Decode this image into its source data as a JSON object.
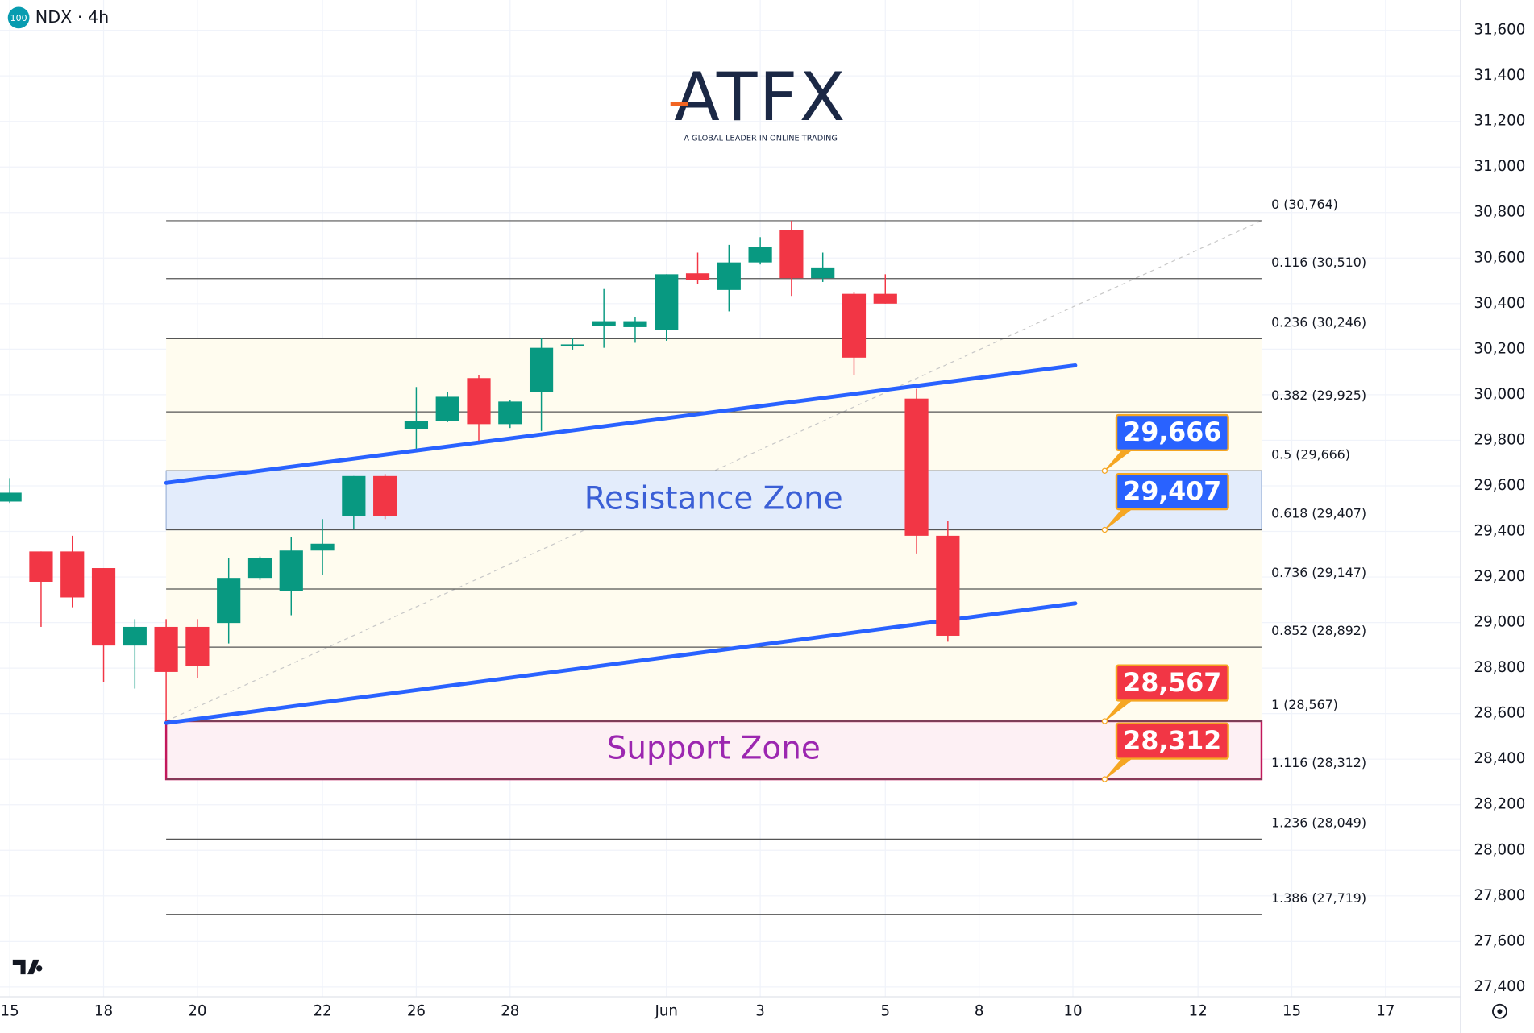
{
  "header": {
    "symbol_badge": "100",
    "title": "NDX · 4h"
  },
  "logo": {
    "name": "ATFX",
    "tagline": "A GLOBAL LEADER IN ONLINE TRADING"
  },
  "chart_data": {
    "type": "candlestick",
    "grid": true,
    "up_color": "#089981",
    "down_color": "#f23645",
    "categories": [
      "15",
      null,
      null,
      "18",
      null,
      null,
      "20",
      null,
      null,
      null,
      "22",
      null,
      null,
      "26",
      null,
      null,
      "28",
      null,
      null,
      null,
      null,
      "Jun",
      null,
      null,
      "3",
      null,
      null,
      null,
      "5",
      null,
      null,
      "8",
      null,
      null,
      "10",
      null,
      null,
      null,
      "12",
      null,
      null,
      "15",
      null,
      null,
      "17",
      null
    ],
    "open": [
      29531,
      29312,
      29312,
      29239,
      28899,
      28981,
      28981,
      28998,
      29196,
      29140,
      29316,
      29467,
      29643,
      29850,
      29884,
      30073,
      29871,
      30013,
      30215,
      30301,
      30297,
      30284,
      30533,
      30460,
      30581,
      30723,
      30512,
      30443,
      30443,
      29983,
      29381,
      null,
      null,
      null,
      null,
      null,
      null,
      null,
      null,
      null,
      null,
      null,
      null,
      null,
      null,
      null
    ],
    "high": [
      29634,
      29312,
      29381,
      29239,
      29015,
      29015,
      29015,
      29282,
      29290,
      29376,
      29454,
      29643,
      29652,
      30034,
      30013,
      30086,
      29975,
      30250,
      30250,
      30464,
      30340,
      30529,
      30624,
      30658,
      30692,
      30764,
      30624,
      30452,
      30529,
      30026,
      29445,
      null,
      null,
      null,
      null,
      null,
      null,
      null,
      null,
      null,
      null,
      null,
      null,
      null,
      null,
      null
    ],
    "low": [
      29525,
      28981,
      29067,
      28740,
      28710,
      28567,
      28757,
      28908,
      29187,
      29032,
      29209,
      29411,
      29454,
      29763,
      29880,
      29798,
      29854,
      29841,
      30198,
      30206,
      30228,
      30237,
      30486,
      30366,
      30572,
      30434,
      30495,
      30086,
      30400,
      29303,
      28916,
      null,
      null,
      null,
      null,
      null,
      null,
      null,
      null,
      null,
      null,
      null,
      null,
      null,
      null,
      null
    ],
    "close": [
      29570,
      29179,
      29110,
      28899,
      28981,
      28783,
      28809,
      29196,
      29282,
      29316,
      29346,
      29643,
      29467,
      29884,
      29991,
      29871,
      29970,
      30206,
      30221,
      30323,
      30323,
      30529,
      30503,
      30581,
      30650,
      30512,
      30559,
      30163,
      30400,
      29381,
      28942,
      null,
      null,
      null,
      null,
      null,
      null,
      null,
      null,
      null,
      null,
      null,
      null,
      null,
      null,
      null
    ],
    "ylim": [
      27357,
      31733
    ],
    "yticks": [
      {
        "value": 27400,
        "label": "27,400"
      },
      {
        "value": 27600,
        "label": "27,600"
      },
      {
        "value": 27800,
        "label": "27,800"
      },
      {
        "value": 28000,
        "label": "28,000"
      },
      {
        "value": 28200,
        "label": "28,200"
      },
      {
        "value": 28400,
        "label": "28,400"
      },
      {
        "value": 28600,
        "label": "28,600"
      },
      {
        "value": 28800,
        "label": "28,800"
      },
      {
        "value": 29000,
        "label": "29,000"
      },
      {
        "value": 29200,
        "label": "29,200"
      },
      {
        "value": 29400,
        "label": "29,400"
      },
      {
        "value": 29600,
        "label": "29,600"
      },
      {
        "value": 29800,
        "label": "29,800"
      },
      {
        "value": 30000,
        "label": "30,000"
      },
      {
        "value": 30200,
        "label": "30,200"
      },
      {
        "value": 30400,
        "label": "30,400"
      },
      {
        "value": 30600,
        "label": "30,600"
      },
      {
        "value": 30800,
        "label": "30,800"
      },
      {
        "value": 31000,
        "label": "31,000"
      },
      {
        "value": 31200,
        "label": "31,200"
      },
      {
        "value": 31400,
        "label": "31,400"
      },
      {
        "value": 31600,
        "label": "31,600"
      }
    ],
    "fib_levels": [
      {
        "value": 30764,
        "label": "0 (30,764)"
      },
      {
        "value": 30510,
        "label": "0.116 (30,510)"
      },
      {
        "value": 30246,
        "label": "0.236 (30,246)"
      },
      {
        "value": 29925,
        "label": "0.382 (29,925)"
      },
      {
        "value": 29666,
        "label": "0.5 (29,666)"
      },
      {
        "value": 29407,
        "label": "0.618 (29,407)"
      },
      {
        "value": 29147,
        "label": "0.736 (29,147)"
      },
      {
        "value": 28892,
        "label": "0.852 (28,892)"
      },
      {
        "value": 28567,
        "label": "1 (28,567)"
      },
      {
        "value": 28312,
        "label": "1.116 (28,312)"
      },
      {
        "value": 28049,
        "label": "1.236 (28,049)"
      },
      {
        "value": 27719,
        "label": "1.386 (27,719)"
      }
    ],
    "trendlines": [
      {
        "values": [
          29613,
          30129
        ],
        "color": "#2962ff"
      },
      {
        "values": [
          28559,
          29084
        ],
        "color": "#2962ff"
      }
    ],
    "zones": [
      {
        "label": "Resistance Zone",
        "range": [
          29407,
          29666
        ],
        "color": "#3b5fd6"
      },
      {
        "label": "Support Zone",
        "range": [
          28312,
          28567
        ],
        "color": "#9c27b0"
      }
    ],
    "callouts": [
      {
        "value": 29666,
        "label": "29,666",
        "color": "#2962ff"
      },
      {
        "value": 29407,
        "label": "29,407",
        "color": "#2962ff"
      },
      {
        "value": 28567,
        "label": "28,567",
        "color": "#f23645"
      },
      {
        "value": 28312,
        "label": "28,312",
        "color": "#f23645"
      }
    ]
  }
}
